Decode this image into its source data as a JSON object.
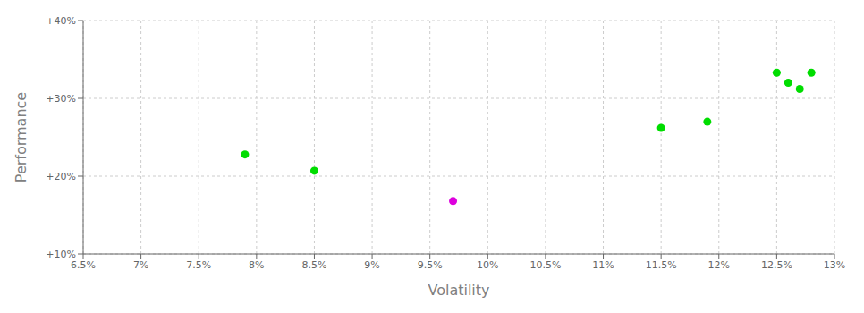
{
  "chart_data": {
    "type": "scatter",
    "xlabel": "Volatility",
    "ylabel": "Performance",
    "xlim": [
      0.065,
      0.13
    ],
    "ylim": [
      0.1,
      0.4
    ],
    "xticks": [
      {
        "value": 0.065,
        "label": "6.5%"
      },
      {
        "value": 0.07,
        "label": "7%"
      },
      {
        "value": 0.075,
        "label": "7.5%"
      },
      {
        "value": 0.08,
        "label": "8%"
      },
      {
        "value": 0.085,
        "label": "8.5%"
      },
      {
        "value": 0.09,
        "label": "9%"
      },
      {
        "value": 0.095,
        "label": "9.5%"
      },
      {
        "value": 0.1,
        "label": "10%"
      },
      {
        "value": 0.105,
        "label": "10.5%"
      },
      {
        "value": 0.11,
        "label": "11%"
      },
      {
        "value": 0.115,
        "label": "11.5%"
      },
      {
        "value": 0.12,
        "label": "12%"
      },
      {
        "value": 0.125,
        "label": "12.5%"
      },
      {
        "value": 0.13,
        "label": "13%"
      }
    ],
    "yticks": [
      {
        "value": 0.1,
        "label": "+10%"
      },
      {
        "value": 0.2,
        "label": "+20%"
      },
      {
        "value": 0.3,
        "label": "+30%"
      },
      {
        "value": 0.4,
        "label": "+40%"
      }
    ],
    "grid": true,
    "series": [
      {
        "color": "#00dd00",
        "x": [
          0.079,
          0.085,
          0.115,
          0.119,
          0.125,
          0.126,
          0.127,
          0.128
        ],
        "values": [
          0.228,
          0.207,
          0.262,
          0.27,
          0.333,
          0.32,
          0.312,
          0.333
        ]
      },
      {
        "color": "#dd00dd",
        "x": [
          0.097
        ],
        "values": [
          0.168
        ]
      }
    ]
  }
}
